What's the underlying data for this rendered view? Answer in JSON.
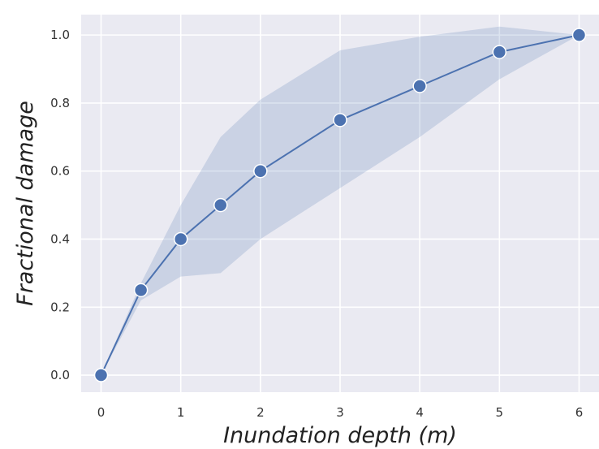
{
  "chart_data": {
    "type": "line",
    "title": "",
    "xlabel": "Inundation depth (m)",
    "ylabel": "Fractional damage",
    "xlim": [
      -0.25,
      6.25
    ],
    "ylim": [
      -0.05,
      1.06
    ],
    "xticks": [
      0,
      1,
      2,
      3,
      4,
      5,
      6
    ],
    "yticks": [
      0.0,
      0.2,
      0.4,
      0.6,
      0.8,
      1.0
    ],
    "ytick_labels": [
      "0.0",
      "0.2",
      "0.4",
      "0.6",
      "0.8",
      "1.0"
    ],
    "grid": true,
    "legend": "none",
    "series": [
      {
        "x": [
          0,
          0.5,
          1,
          1.5,
          2,
          3,
          4,
          5,
          6
        ],
        "y": [
          0.0,
          0.25,
          0.4,
          0.5,
          0.6,
          0.75,
          0.85,
          0.95,
          1.0
        ],
        "band_upper": [
          0.0,
          0.27,
          0.5,
          0.7,
          0.81,
          0.955,
          0.995,
          1.025,
          1.0
        ],
        "band_lower": [
          0.0,
          0.22,
          0.29,
          0.3,
          0.4,
          0.55,
          0.7,
          0.87,
          1.0
        ],
        "color": "#4c72b0",
        "band_color": "#4c72b0"
      }
    ],
    "colors": {
      "plot_background": "#eaeaf2",
      "grid": "#ffffff"
    }
  }
}
